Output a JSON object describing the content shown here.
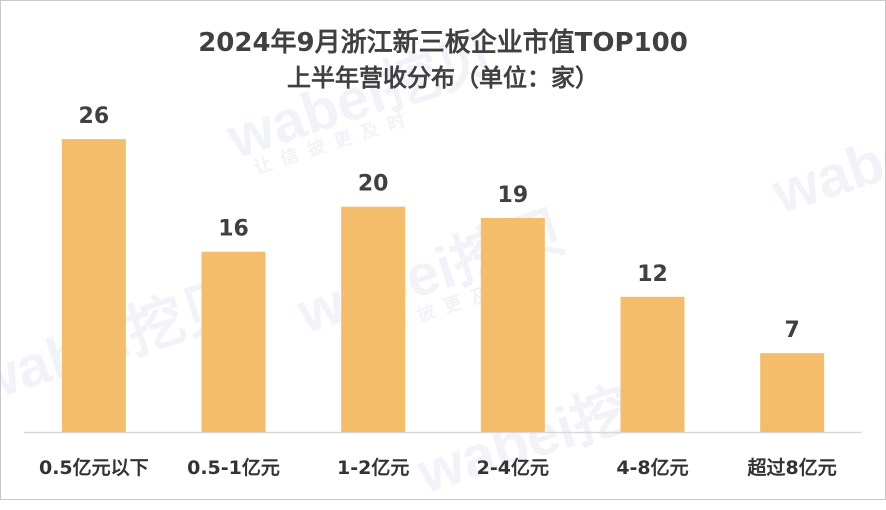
{
  "chart_data": {
    "type": "bar",
    "title": "2024年9月浙江新三板企业市值TOP100",
    "subtitle": "上半年营收分布（单位：家）",
    "categories": [
      "0.5亿元以下",
      "0.5-1亿元",
      "1-2亿元",
      "2-4亿元",
      "4-8亿元",
      "超过8亿元"
    ],
    "values": [
      26,
      16,
      20,
      19,
      12,
      7
    ],
    "ylim": [
      0,
      30
    ],
    "bar_color": "#f3bd6b",
    "axis_color": "#d9d9d9",
    "grid": false,
    "legend": "none"
  },
  "watermark": {
    "brand": "wabei挖贝",
    "slogan": "让信披更及时"
  }
}
